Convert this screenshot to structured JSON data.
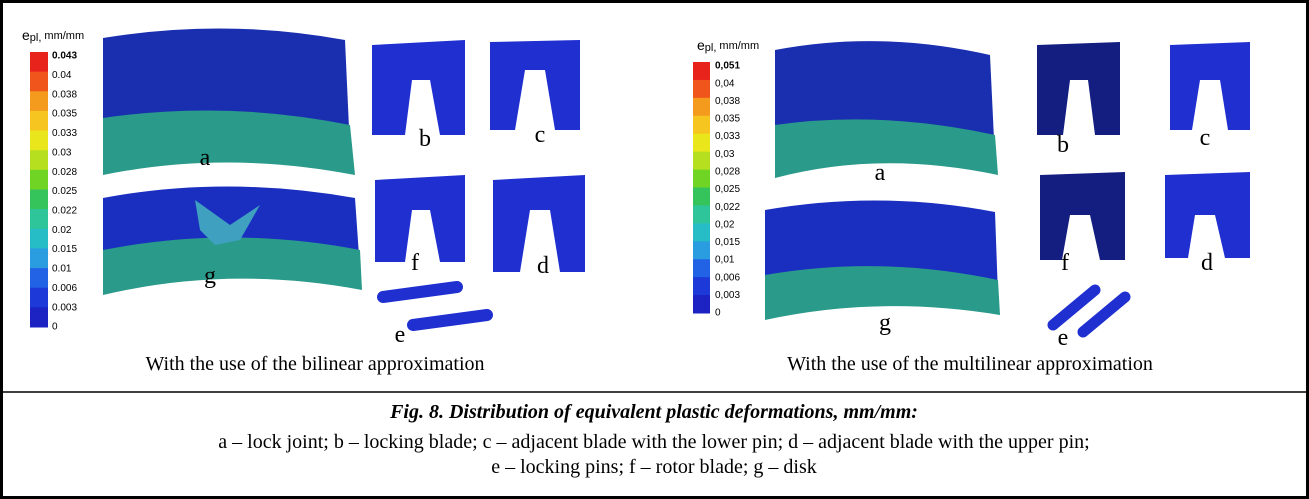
{
  "panels": [
    {
      "legend": {
        "symbol": "e",
        "subscript": "pl,",
        "unit": "mm/mm",
        "labels": [
          "0.043",
          "0.04",
          "0.038",
          "0.035",
          "0.033",
          "0.03",
          "0.028",
          "0.025",
          "0.022",
          "0.02",
          "0.015",
          "0.01",
          "0.006",
          "0.003",
          "0"
        ]
      },
      "parts": [
        "a",
        "b",
        "c",
        "g",
        "f",
        "d",
        "e"
      ],
      "caption": "With the use of the bilinear approximation"
    },
    {
      "legend": {
        "symbol": "e",
        "subscript": "pl,",
        "unit": "mm/mm",
        "labels": [
          "0,051",
          "0,04",
          "0,038",
          "0,035",
          "0,033",
          "0,03",
          "0,028",
          "0,025",
          "0,022",
          "0,02",
          "0,015",
          "0,01",
          "0,006",
          "0,003",
          "0"
        ]
      },
      "parts": [
        "a",
        "b",
        "c",
        "g",
        "f",
        "d",
        "e"
      ],
      "caption": "With the use of the multilinear approximation"
    }
  ],
  "figure": {
    "title": "Fig. 8. Distribution of equivalent plastic deformations, mm/mm:",
    "lines": [
      "a – lock joint; b – locking blade; c – adjacent blade with the lower pin; d – adjacent blade with the upper pin;",
      "e – locking pins; f – rotor blade; g – disk"
    ]
  }
}
